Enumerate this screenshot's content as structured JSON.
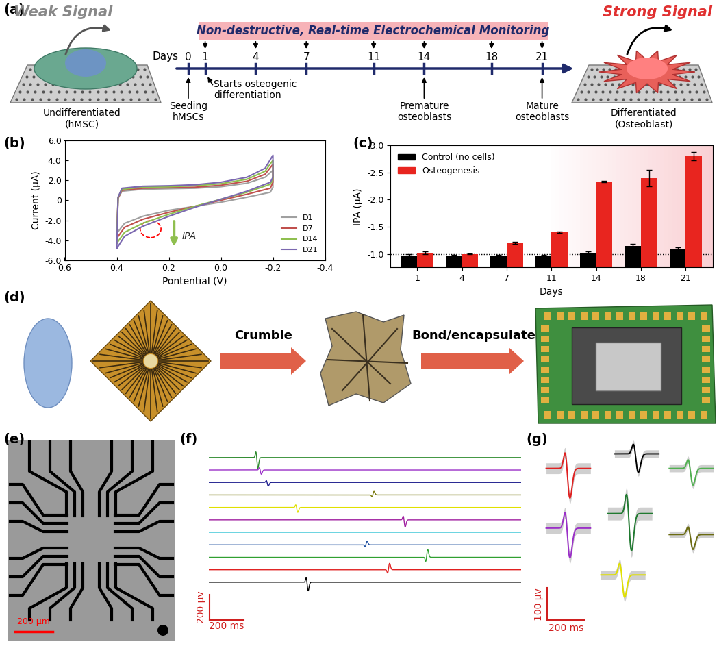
{
  "panel_labels": [
    "(a)",
    "(b)",
    "(c)",
    "(d)",
    "(e)",
    "(f)",
    "(g)"
  ],
  "a": {
    "left_signal": "Weak Signal",
    "right_signal": "Strong Signal",
    "left_cell": "Undifferentiated\n(hMSC)",
    "right_cell": "Differentiated\n(Osteoblast)",
    "banner": "Non-destructive, Real-time Electrochemical Monitoring",
    "days_label": "Days",
    "days": [
      0,
      1,
      4,
      7,
      11,
      14,
      18,
      21
    ],
    "monitor_days": [
      1,
      4,
      7,
      11,
      14,
      18,
      21
    ],
    "events": [
      {
        "day": 0,
        "label": "Seeding\nhMSCs"
      },
      {
        "day": 1,
        "label": "Starts osteogenic\ndifferentiation"
      },
      {
        "day": 14,
        "label": "Premature\nosteoblasts"
      },
      {
        "day": 21,
        "label": "Mature\nosteoblasts"
      }
    ]
  },
  "chart_data": [
    {
      "type": "line",
      "xlabel": "Pontential (V)",
      "ylabel": "Current (μA)",
      "xlim": [
        0.6,
        -0.4
      ],
      "xticks": [
        0.6,
        0.4,
        0.2,
        0.0,
        -0.2,
        -0.4
      ],
      "ylim": [
        -6.0,
        6.0
      ],
      "yticks": [
        -6.0,
        -4.0,
        -2.0,
        0,
        2.0,
        4.0,
        6.0
      ],
      "legend": "lower right",
      "annotation": "IPA",
      "series": [
        {
          "name": "D1",
          "color": "#a0a0a0",
          "x": [
            0.4,
            0.395,
            0.38,
            0.3,
            0.2,
            0.1,
            0.0,
            -0.1,
            -0.17,
            -0.2,
            -0.2,
            -0.19,
            -0.1,
            0.0,
            0.1,
            0.2,
            0.3,
            0.37,
            0.4
          ],
          "values": [
            -3.3,
            0.2,
            0.9,
            1.1,
            1.15,
            1.2,
            1.35,
            1.7,
            2.3,
            3.0,
            1.3,
            0.8,
            0.3,
            -0.2,
            -0.6,
            -1.0,
            -1.6,
            -2.3,
            -3.3
          ]
        },
        {
          "name": "D7",
          "color": "#c0504d",
          "x": [
            0.4,
            0.395,
            0.38,
            0.3,
            0.2,
            0.1,
            0.0,
            -0.1,
            -0.17,
            -0.2,
            -0.2,
            -0.19,
            -0.1,
            0.0,
            0.1,
            0.2,
            0.3,
            0.37,
            0.4
          ],
          "values": [
            -3.8,
            0.2,
            1.0,
            1.2,
            1.25,
            1.3,
            1.5,
            1.9,
            2.6,
            3.6,
            1.8,
            1.2,
            0.6,
            0.0,
            -0.6,
            -1.2,
            -1.9,
            -2.7,
            -3.8
          ]
        },
        {
          "name": "D14",
          "color": "#8fbf4f",
          "x": [
            0.4,
            0.395,
            0.38,
            0.3,
            0.2,
            0.1,
            0.0,
            -0.1,
            -0.17,
            -0.2,
            -0.2,
            -0.19,
            -0.1,
            0.0,
            0.1,
            0.2,
            0.3,
            0.37,
            0.4
          ],
          "values": [
            -4.3,
            0.3,
            1.1,
            1.3,
            1.35,
            1.45,
            1.65,
            2.1,
            2.9,
            4.0,
            2.1,
            1.6,
            0.8,
            0.1,
            -0.6,
            -1.4,
            -2.3,
            -3.2,
            -4.3
          ]
        },
        {
          "name": "D21",
          "color": "#7b68b0",
          "x": [
            0.4,
            0.395,
            0.38,
            0.3,
            0.2,
            0.1,
            0.0,
            -0.1,
            -0.17,
            -0.2,
            -0.2,
            -0.19,
            -0.1,
            0.0,
            0.1,
            0.2,
            0.3,
            0.37,
            0.4
          ],
          "values": [
            -4.8,
            0.3,
            1.2,
            1.4,
            1.45,
            1.55,
            1.8,
            2.3,
            3.2,
            4.5,
            2.3,
            1.8,
            0.9,
            0.1,
            -0.7,
            -1.6,
            -2.6,
            -3.6,
            -4.8
          ]
        }
      ]
    },
    {
      "type": "bar",
      "xlabel": "Days",
      "ylabel": "IPA (μA)",
      "categories": [
        "1",
        "4",
        "7",
        "11",
        "14",
        "18",
        "21"
      ],
      "ylim": [
        -0.75,
        -3.0
      ],
      "yticks": [
        -1.0,
        -1.5,
        -2.0,
        -2.5,
        -3.0
      ],
      "legend": "upper left",
      "reference_line": -1.0,
      "series": [
        {
          "name": "Control (no cells)",
          "color": "#000000",
          "values": [
            -0.97,
            -0.97,
            -0.97,
            -0.97,
            -1.02,
            -1.15,
            -1.1
          ],
          "errors": [
            0.02,
            0.01,
            0.01,
            0.01,
            0.02,
            0.03,
            0.02
          ]
        },
        {
          "name": "Osteogenesis",
          "color": "#e8251f",
          "values": [
            -1.02,
            -1.0,
            -1.2,
            -1.4,
            -2.33,
            -2.4,
            -2.8
          ],
          "errors": [
            0.02,
            0.01,
            0.02,
            0.01,
            0.01,
            0.15,
            0.07
          ]
        }
      ]
    }
  ],
  "d": {
    "steps": [
      "Crumble",
      "Bond/encapsulate"
    ]
  },
  "e": {
    "scale_bar": "200 μm"
  },
  "f": {
    "duration": 1800,
    "scale_x": {
      "value": 200,
      "label": "200 ms"
    },
    "scale_y": {
      "value": 200,
      "label": "200 μv"
    },
    "traces": [
      {
        "color": "#2e8b2e",
        "spikes": [
          [
            270,
            150
          ]
        ]
      },
      {
        "color": "#9b30c8",
        "spikes": [
          [
            290,
            60
          ]
        ]
      },
      {
        "color": "#1a1a8c",
        "spikes": [
          [
            330,
            50
          ]
        ]
      },
      {
        "color": "#7a7a10",
        "spikes": [
          [
            940,
            -50
          ]
        ]
      },
      {
        "color": "#e0e000",
        "spikes": [
          [
            500,
            70
          ]
        ]
      },
      {
        "color": "#a020a0",
        "spikes": [
          [
            1120,
            100
          ]
        ]
      },
      {
        "color": "#40c8d8",
        "spikes": []
      },
      {
        "color": "#2050a0",
        "spikes": [
          [
            900,
            -50
          ]
        ]
      },
      {
        "color": "#30a030",
        "spikes": [
          [
            1250,
            -110
          ]
        ]
      },
      {
        "color": "#e02020",
        "spikes": [
          [
            1030,
            -90
          ]
        ]
      },
      {
        "color": "#000000",
        "spikes": [
          [
            560,
            120
          ]
        ]
      }
    ]
  },
  "g": {
    "scale_x": {
      "value": 200,
      "label": "200 ms"
    },
    "scale_y": {
      "value": 100,
      "label": "100 μv"
    },
    "waveforms": [
      {
        "color": "#e02020",
        "amplitude": 160
      },
      {
        "color": "#000000",
        "amplitude": 100
      },
      {
        "color": "#50b050",
        "amplitude": 90
      },
      {
        "color": "#9b30c8",
        "amplitude": 160
      },
      {
        "color": "#207a30",
        "amplitude": 200
      },
      {
        "color": "#6b6b10",
        "amplitude": 80
      },
      {
        "color": "#e0e000",
        "amplitude": 120
      }
    ]
  }
}
